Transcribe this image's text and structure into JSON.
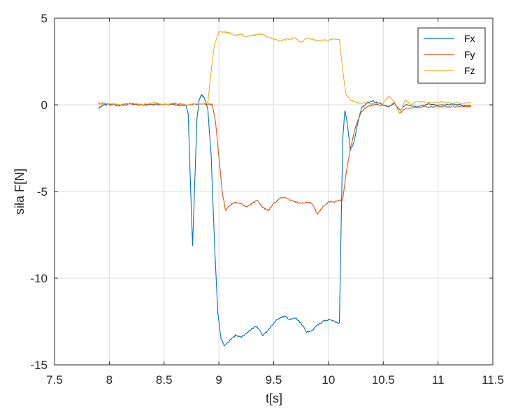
{
  "chart_data": {
    "type": "line",
    "xlabel": "t[s]",
    "ylabel": "siła F[N]",
    "xlim": [
      7.5,
      11.5
    ],
    "ylim": [
      -15,
      5
    ],
    "xticks": [
      "7.5",
      "8",
      "8.5",
      "9",
      "9.5",
      "10",
      "10.5",
      "11",
      "11.5"
    ],
    "yticks": [
      "5",
      "0",
      "-5",
      "-10",
      "-15"
    ],
    "grid": true,
    "legend_position": "top-right",
    "series": [
      {
        "name": "Fx",
        "color": "#0072BD",
        "points": [
          [
            7.9,
            -0.2
          ],
          [
            7.95,
            0.0
          ],
          [
            8.0,
            0.0
          ],
          [
            8.1,
            -0.05
          ],
          [
            8.2,
            0.05
          ],
          [
            8.3,
            0.0
          ],
          [
            8.4,
            0.0
          ],
          [
            8.5,
            0.05
          ],
          [
            8.6,
            0.0
          ],
          [
            8.7,
            -0.05
          ],
          [
            8.72,
            -0.5
          ],
          [
            8.74,
            -4.5
          ],
          [
            8.76,
            -8.1
          ],
          [
            8.78,
            -4.5
          ],
          [
            8.8,
            -0.8
          ],
          [
            8.82,
            0.3
          ],
          [
            8.84,
            0.55
          ],
          [
            8.86,
            0.5
          ],
          [
            8.88,
            0.2
          ],
          [
            8.9,
            -0.3
          ],
          [
            8.93,
            -3.0
          ],
          [
            8.96,
            -8.0
          ],
          [
            8.99,
            -12.0
          ],
          [
            9.02,
            -13.5
          ],
          [
            9.05,
            -13.9
          ],
          [
            9.1,
            -13.6
          ],
          [
            9.15,
            -13.3
          ],
          [
            9.2,
            -13.4
          ],
          [
            9.25,
            -13.2
          ],
          [
            9.3,
            -12.9
          ],
          [
            9.35,
            -12.8
          ],
          [
            9.4,
            -13.3
          ],
          [
            9.45,
            -13.0
          ],
          [
            9.5,
            -12.6
          ],
          [
            9.55,
            -12.3
          ],
          [
            9.6,
            -12.2
          ],
          [
            9.65,
            -12.4
          ],
          [
            9.7,
            -12.3
          ],
          [
            9.75,
            -12.6
          ],
          [
            9.8,
            -13.1
          ],
          [
            9.85,
            -13.0
          ],
          [
            9.9,
            -12.7
          ],
          [
            9.95,
            -12.5
          ],
          [
            10.0,
            -12.4
          ],
          [
            10.05,
            -12.5
          ],
          [
            10.1,
            -12.6
          ],
          [
            10.11,
            -9.0
          ],
          [
            10.13,
            -2.0
          ],
          [
            10.15,
            -0.3
          ],
          [
            10.17,
            -1.0
          ],
          [
            10.2,
            -2.6
          ],
          [
            10.23,
            -2.2
          ],
          [
            10.27,
            -1.0
          ],
          [
            10.3,
            -0.2
          ],
          [
            10.35,
            0.1
          ],
          [
            10.4,
            0.25
          ],
          [
            10.45,
            0.1
          ],
          [
            10.5,
            0.0
          ],
          [
            10.55,
            -0.1
          ],
          [
            10.6,
            0.1
          ],
          [
            10.65,
            -0.3
          ],
          [
            10.7,
            0.0
          ],
          [
            10.8,
            -0.1
          ],
          [
            10.9,
            0.05
          ],
          [
            11.0,
            -0.05
          ],
          [
            11.1,
            0.0
          ],
          [
            11.2,
            0.0
          ],
          [
            11.3,
            -0.05
          ]
        ]
      },
      {
        "name": "Fy",
        "color": "#D95319",
        "points": [
          [
            7.9,
            0.1
          ],
          [
            8.0,
            0.05
          ],
          [
            8.1,
            0.0
          ],
          [
            8.2,
            0.05
          ],
          [
            8.3,
            0.0
          ],
          [
            8.4,
            0.05
          ],
          [
            8.5,
            0.0
          ],
          [
            8.6,
            0.05
          ],
          [
            8.7,
            0.0
          ],
          [
            8.8,
            0.05
          ],
          [
            8.9,
            0.05
          ],
          [
            8.94,
            0.0
          ],
          [
            8.97,
            -1.0
          ],
          [
            9.0,
            -3.0
          ],
          [
            9.03,
            -5.0
          ],
          [
            9.06,
            -6.1
          ],
          [
            9.1,
            -5.8
          ],
          [
            9.15,
            -5.6
          ],
          [
            9.2,
            -5.7
          ],
          [
            9.25,
            -5.9
          ],
          [
            9.3,
            -5.7
          ],
          [
            9.35,
            -5.5
          ],
          [
            9.4,
            -5.9
          ],
          [
            9.45,
            -6.1
          ],
          [
            9.5,
            -5.7
          ],
          [
            9.55,
            -5.4
          ],
          [
            9.6,
            -5.3
          ],
          [
            9.65,
            -5.5
          ],
          [
            9.7,
            -5.6
          ],
          [
            9.75,
            -5.7
          ],
          [
            9.8,
            -5.6
          ],
          [
            9.85,
            -5.7
          ],
          [
            9.9,
            -6.3
          ],
          [
            9.95,
            -5.9
          ],
          [
            10.0,
            -5.6
          ],
          [
            10.05,
            -5.6
          ],
          [
            10.1,
            -5.5
          ],
          [
            10.13,
            -5.5
          ],
          [
            10.16,
            -4.0
          ],
          [
            10.2,
            -2.5
          ],
          [
            10.25,
            -1.2
          ],
          [
            10.3,
            -0.4
          ],
          [
            10.35,
            -0.1
          ],
          [
            10.4,
            0.0
          ],
          [
            10.5,
            0.0
          ],
          [
            10.55,
            -0.1
          ],
          [
            10.6,
            0.15
          ],
          [
            10.65,
            -0.5
          ],
          [
            10.7,
            -0.2
          ],
          [
            10.8,
            -0.15
          ],
          [
            10.9,
            -0.1
          ],
          [
            11.0,
            -0.1
          ],
          [
            11.1,
            -0.1
          ],
          [
            11.2,
            -0.1
          ],
          [
            11.3,
            -0.1
          ]
        ]
      },
      {
        "name": "Fz",
        "color": "#EDB120",
        "points": [
          [
            7.9,
            0.05
          ],
          [
            8.0,
            0.05
          ],
          [
            8.1,
            0.0
          ],
          [
            8.2,
            0.1
          ],
          [
            8.3,
            0.0
          ],
          [
            8.4,
            0.15
          ],
          [
            8.5,
            0.0
          ],
          [
            8.6,
            0.1
          ],
          [
            8.7,
            0.0
          ],
          [
            8.8,
            0.1
          ],
          [
            8.85,
            0.0
          ],
          [
            8.9,
            0.15
          ],
          [
            8.93,
            2.0
          ],
          [
            8.96,
            3.5
          ],
          [
            9.0,
            4.2
          ],
          [
            9.05,
            4.2
          ],
          [
            9.1,
            4.15
          ],
          [
            9.15,
            4.0
          ],
          [
            9.2,
            4.1
          ],
          [
            9.25,
            3.9
          ],
          [
            9.3,
            4.0
          ],
          [
            9.35,
            4.05
          ],
          [
            9.4,
            4.1
          ],
          [
            9.45,
            3.9
          ],
          [
            9.5,
            3.8
          ],
          [
            9.55,
            3.7
          ],
          [
            9.6,
            3.75
          ],
          [
            9.65,
            3.8
          ],
          [
            9.7,
            3.85
          ],
          [
            9.75,
            3.6
          ],
          [
            9.8,
            3.85
          ],
          [
            9.85,
            3.8
          ],
          [
            9.9,
            3.7
          ],
          [
            9.95,
            3.75
          ],
          [
            10.0,
            3.7
          ],
          [
            10.05,
            3.8
          ],
          [
            10.1,
            3.75
          ],
          [
            10.13,
            2.0
          ],
          [
            10.16,
            0.6
          ],
          [
            10.2,
            0.3
          ],
          [
            10.25,
            0.15
          ],
          [
            10.3,
            0.1
          ],
          [
            10.4,
            0.1
          ],
          [
            10.5,
            0.1
          ],
          [
            10.55,
            0.5
          ],
          [
            10.6,
            0.2
          ],
          [
            10.65,
            -0.5
          ],
          [
            10.7,
            0.3
          ],
          [
            10.75,
            0.0
          ],
          [
            10.8,
            0.2
          ],
          [
            10.9,
            0.15
          ],
          [
            11.0,
            0.15
          ],
          [
            11.1,
            0.1
          ],
          [
            11.2,
            0.1
          ],
          [
            11.3,
            0.15
          ]
        ]
      }
    ]
  }
}
